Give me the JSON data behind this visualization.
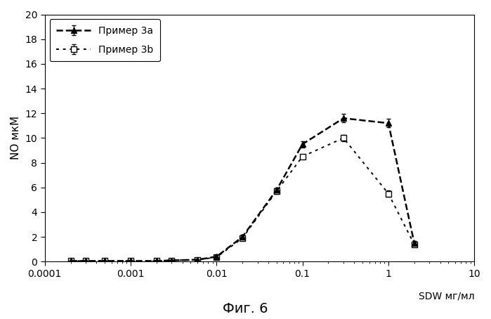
{
  "series_3a": {
    "label": "Пример 3a",
    "x": [
      0.0002,
      0.0003,
      0.0005,
      0.001,
      0.002,
      0.003,
      0.006,
      0.01,
      0.02,
      0.05,
      0.1,
      0.3,
      1.0,
      2.0
    ],
    "y": [
      0.05,
      0.05,
      0.05,
      0.05,
      0.05,
      0.1,
      0.15,
      0.4,
      2.0,
      5.8,
      9.5,
      11.6,
      11.2,
      1.5
    ],
    "yerr": [
      0.05,
      0.05,
      0.05,
      0.05,
      0.05,
      0.05,
      0.05,
      0.1,
      0.15,
      0.2,
      0.25,
      0.35,
      0.35,
      0.15
    ],
    "color": "black",
    "marker": "^",
    "linestyle": "--",
    "linewidth": 1.8,
    "markersize": 6,
    "markerfacecolor": "black"
  },
  "series_3b": {
    "label": "Пример 3b",
    "x": [
      0.0002,
      0.0003,
      0.0005,
      0.001,
      0.002,
      0.003,
      0.006,
      0.01,
      0.02,
      0.05,
      0.1,
      0.3,
      1.0,
      2.0
    ],
    "y": [
      0.05,
      0.05,
      0.05,
      0.05,
      0.05,
      0.1,
      0.15,
      0.35,
      1.9,
      5.7,
      8.5,
      10.0,
      5.5,
      1.4
    ],
    "yerr": [
      0.05,
      0.05,
      0.05,
      0.05,
      0.05,
      0.05,
      0.05,
      0.1,
      0.15,
      0.2,
      0.15,
      0.25,
      0.25,
      0.1
    ],
    "color": "black",
    "marker": "s",
    "linestyle": "--",
    "linewidth": 1.4,
    "markersize": 6,
    "markerfacecolor": "white",
    "dashes": [
      2,
      3
    ]
  },
  "xlim": [
    0.0001,
    10
  ],
  "ylim": [
    0,
    20
  ],
  "yticks": [
    0,
    2,
    4,
    6,
    8,
    10,
    12,
    14,
    16,
    18,
    20
  ],
  "ylabel": "NO мкМ",
  "xlabel": "SDW мг/мл",
  "figure_title": "Фиг. 6",
  "bg_color": "white",
  "plot_bg_color": "white"
}
